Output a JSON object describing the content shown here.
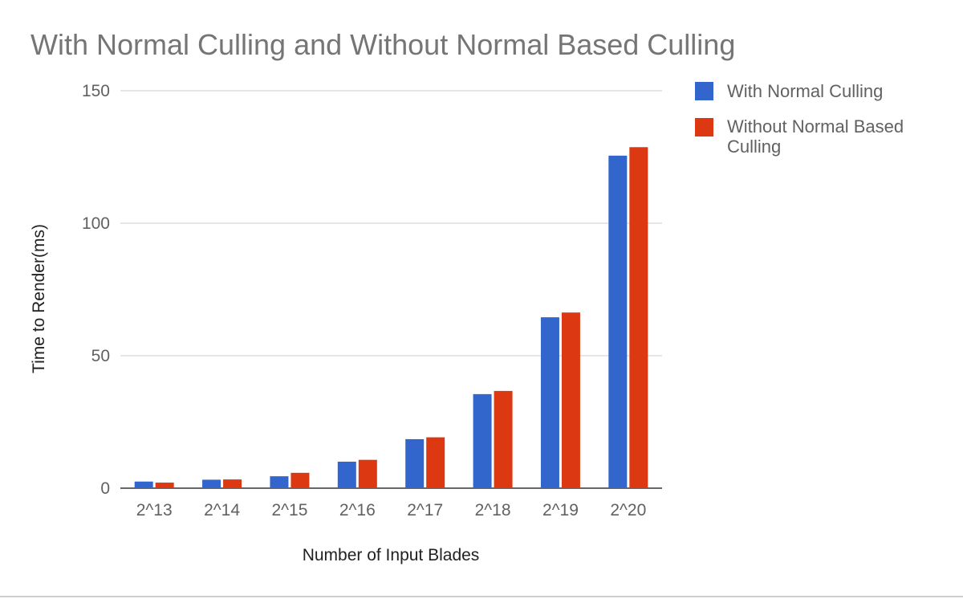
{
  "chart_data": {
    "type": "bar",
    "title": "With Normal Culling and Without Normal Based Culling",
    "xlabel": "Number of Input Blades",
    "ylabel": "Time to Render(ms)",
    "categories": [
      "2^13",
      "2^14",
      "2^15",
      "2^16",
      "2^17",
      "2^18",
      "2^19",
      "2^20"
    ],
    "series": [
      {
        "name": "With Normal Culling",
        "color": "#3366cc",
        "values": [
          2.5,
          3.2,
          4.5,
          10,
          18.5,
          35.5,
          64.5,
          125.5
        ]
      },
      {
        "name": "Without Normal Based Culling",
        "color": "#dc3912",
        "values": [
          2.1,
          3.3,
          5.8,
          10.7,
          19.2,
          36.7,
          66.3,
          128.7
        ]
      }
    ],
    "ylim": [
      0,
      150
    ],
    "yticks": [
      0,
      50,
      100,
      150
    ],
    "grid": true,
    "legend_position": "right"
  }
}
